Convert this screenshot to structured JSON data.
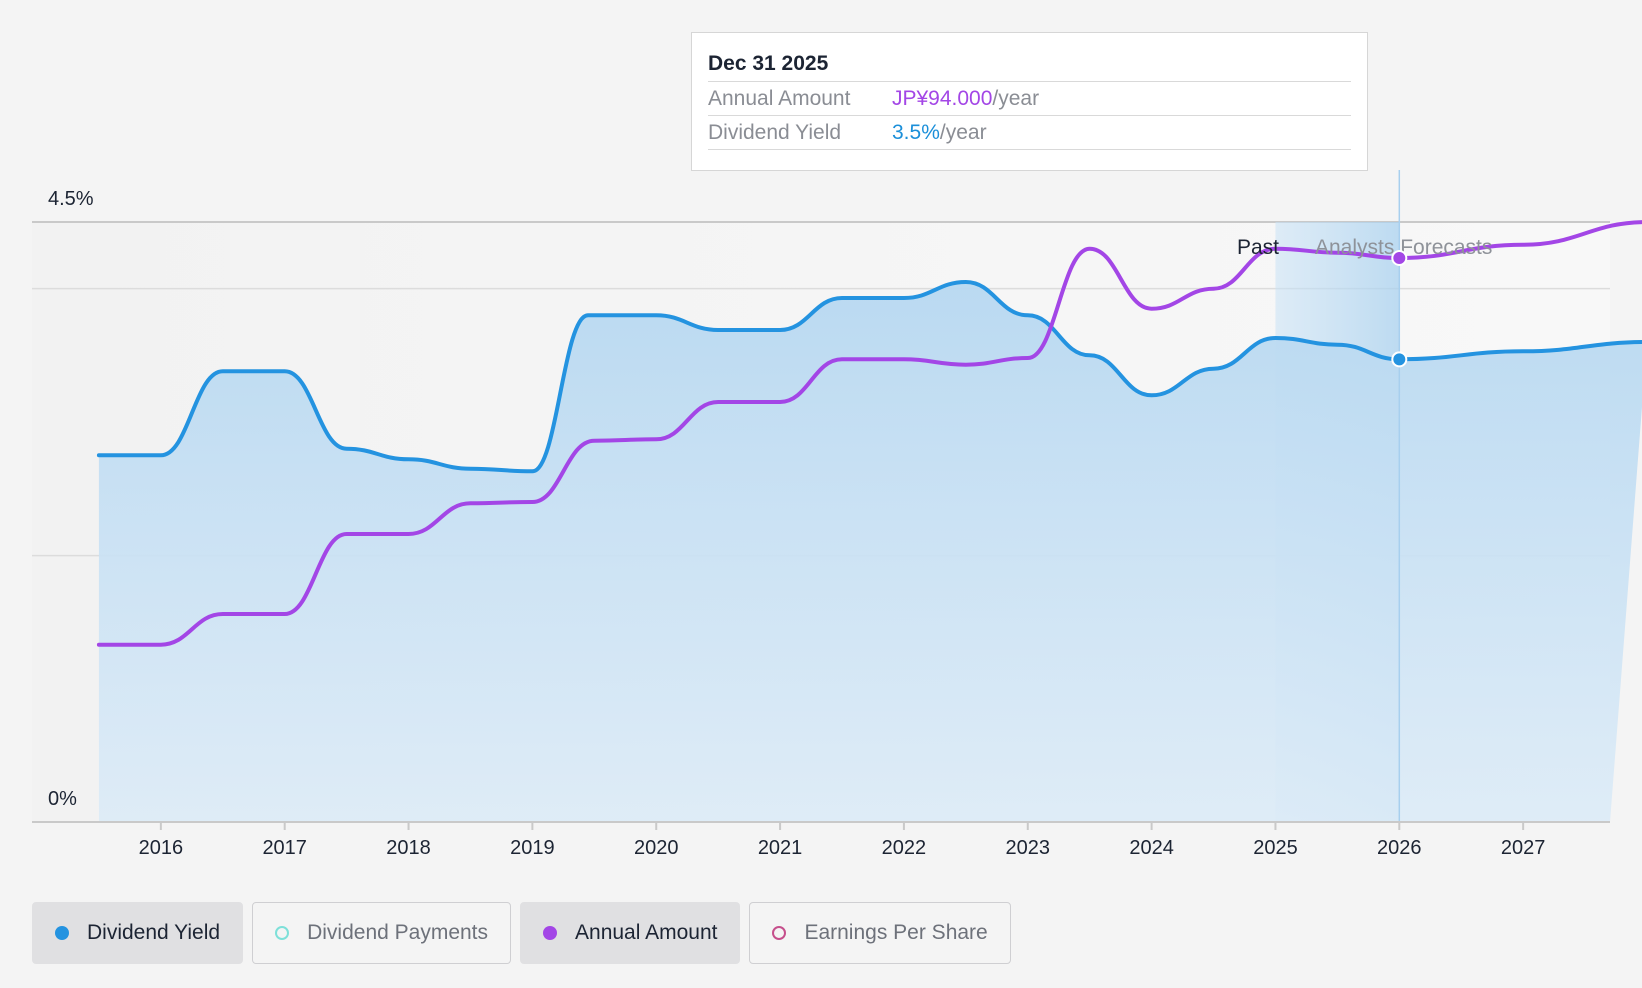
{
  "tooltip": {
    "date": "Dec 31 2025",
    "rows": [
      {
        "key": "Annual Amount",
        "value": "JP¥94.000",
        "unit": "/year",
        "color": "#a346e6"
      },
      {
        "key": "Dividend Yield",
        "value": "3.5%",
        "unit": "/year",
        "color": "#1b8fd9"
      }
    ]
  },
  "zones": {
    "past": "Past",
    "forecast": "Analysts Forecasts"
  },
  "legend": [
    {
      "label": "Dividend Yield",
      "color": "#2493e0",
      "filled": true,
      "active": true
    },
    {
      "label": "Dividend Payments",
      "color": "#7ee0d9",
      "filled": false,
      "active": false
    },
    {
      "label": "Annual Amount",
      "color": "#a346e6",
      "filled": true,
      "active": true
    },
    {
      "label": "Earnings Per Share",
      "color": "#c64f8c",
      "filled": false,
      "active": false
    }
  ],
  "chart_data": {
    "type": "line",
    "y_axis_labels": [
      "4.5%",
      "0%"
    ],
    "ylim": [
      0,
      4.5
    ],
    "xlim": [
      2015.0,
      2028.0
    ],
    "x_ticks": [
      "2016",
      "2017",
      "2018",
      "2019",
      "2020",
      "2021",
      "2022",
      "2023",
      "2024",
      "2025",
      "2026",
      "2027"
    ],
    "grid": true,
    "past_forecast_boundary": 2026.0,
    "highlight_date": "Dec 31 2025",
    "series": [
      {
        "name": "Dividend Yield",
        "color": "#2493e0",
        "unit": "%",
        "area": true,
        "points": [
          [
            2015.5,
            2.75
          ],
          [
            2016.0,
            2.75
          ],
          [
            2016.5,
            3.38
          ],
          [
            2017.0,
            3.38
          ],
          [
            2017.5,
            2.8
          ],
          [
            2018.0,
            2.72
          ],
          [
            2018.5,
            2.65
          ],
          [
            2019.0,
            2.63
          ],
          [
            2019.45,
            3.8
          ],
          [
            2020.0,
            3.8
          ],
          [
            2020.5,
            3.69
          ],
          [
            2021.0,
            3.69
          ],
          [
            2021.5,
            3.93
          ],
          [
            2022.0,
            3.93
          ],
          [
            2022.5,
            4.05
          ],
          [
            2023.0,
            3.8
          ],
          [
            2023.5,
            3.5
          ],
          [
            2024.0,
            3.2
          ],
          [
            2024.5,
            3.4
          ],
          [
            2025.0,
            3.63
          ],
          [
            2025.5,
            3.58
          ],
          [
            2026.0,
            3.47
          ],
          [
            2027.0,
            3.53
          ],
          [
            2028.0,
            3.6
          ]
        ]
      },
      {
        "name": "Annual Amount",
        "color": "#a346e6",
        "unit": "JP¥",
        "area": false,
        "points": [
          [
            2015.5,
            1.33
          ],
          [
            2016.0,
            1.33
          ],
          [
            2016.5,
            1.56
          ],
          [
            2017.0,
            1.56
          ],
          [
            2017.5,
            2.16
          ],
          [
            2018.0,
            2.16
          ],
          [
            2018.5,
            2.39
          ],
          [
            2019.0,
            2.4
          ],
          [
            2019.5,
            2.86
          ],
          [
            2020.0,
            2.87
          ],
          [
            2020.5,
            3.15
          ],
          [
            2021.0,
            3.15
          ],
          [
            2021.5,
            3.47
          ],
          [
            2022.0,
            3.47
          ],
          [
            2022.5,
            3.43
          ],
          [
            2023.0,
            3.48
          ],
          [
            2023.5,
            4.3
          ],
          [
            2024.0,
            3.85
          ],
          [
            2024.5,
            4.0
          ],
          [
            2025.0,
            4.3
          ],
          [
            2025.5,
            4.27
          ],
          [
            2026.0,
            4.23
          ],
          [
            2027.0,
            4.33
          ],
          [
            2028.0,
            4.5
          ]
        ]
      }
    ]
  }
}
